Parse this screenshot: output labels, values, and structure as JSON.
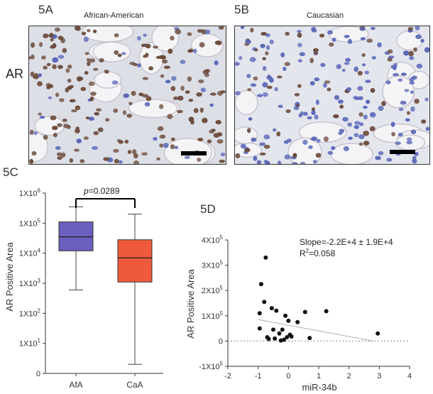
{
  "panels": {
    "a": {
      "label": "5A",
      "title": "African-American"
    },
    "b": {
      "label": "5B",
      "title": "Caucasian"
    },
    "row_label": "AR",
    "c": {
      "label": "5C"
    },
    "d": {
      "label": "5D"
    }
  },
  "colors": {
    "afa_box": "#6a5fbd",
    "caa_box": "#ef5a3c",
    "nuclei_brown": "#6b4a3a",
    "nuclei_blue": "#5a66b8",
    "tissue_bg": "#e8e8ee"
  },
  "chart_data": [
    {
      "type": "box",
      "ylabel": "AR Positive Area",
      "yscale": "log",
      "ytick_labels": [
        "1X10^6",
        "1X10^5",
        "1X10^4",
        "1X10^3",
        "1X10^2",
        "1X10^1",
        "0"
      ],
      "categories": [
        "AfA",
        "CaA"
      ],
      "boxes": [
        {
          "name": "AfA",
          "min": 600,
          "q1": 12000,
          "median": 35000,
          "q3": 110000,
          "max": 350000
        },
        {
          "name": "CaA",
          "min": 2,
          "q1": 1100,
          "median": 7000,
          "q3": 28000,
          "max": 200000
        }
      ],
      "annotation": {
        "p_symbol": "p",
        "p_text": "=0.0289"
      }
    },
    {
      "type": "scatter",
      "xlabel": "miR-34b",
      "ylabel": "AR Positive Area",
      "xlim": [
        -2,
        4
      ],
      "ylim": [
        -100000,
        400000
      ],
      "x_ticks": [
        "-2",
        "-1",
        "0",
        "1",
        "2",
        "3",
        "4"
      ],
      "y_tick_labels": [
        "4X10^5",
        "3X10^5",
        "2X10^5",
        "1X10^5",
        "0",
        "-1X10^5"
      ],
      "annotation": {
        "slope": "Slope=-2.2E+4 ± 1.9E+4",
        "r2_prefix": "R",
        "r2_suffix": "=0.058"
      },
      "points": [
        {
          "x": -0.75,
          "y": 330000
        },
        {
          "x": -0.9,
          "y": 225000
        },
        {
          "x": -0.8,
          "y": 155000
        },
        {
          "x": -0.55,
          "y": 130000
        },
        {
          "x": -0.95,
          "y": 110000
        },
        {
          "x": -0.4,
          "y": 120000
        },
        {
          "x": -0.1,
          "y": 100000
        },
        {
          "x": 0.0,
          "y": 80000
        },
        {
          "x": 0.3,
          "y": 75000
        },
        {
          "x": 0.55,
          "y": 115000
        },
        {
          "x": 1.25,
          "y": 118000
        },
        {
          "x": -0.95,
          "y": 50000
        },
        {
          "x": -0.5,
          "y": 45000
        },
        {
          "x": -0.2,
          "y": 45000
        },
        {
          "x": 0.05,
          "y": 25000
        },
        {
          "x": -0.3,
          "y": 30000
        },
        {
          "x": -0.05,
          "y": 15000
        },
        {
          "x": -0.15,
          "y": 5000
        },
        {
          "x": -0.45,
          "y": 10000
        },
        {
          "x": -0.7,
          "y": 15000
        },
        {
          "x": 0.1,
          "y": 18000
        },
        {
          "x": 0.7,
          "y": 12000
        },
        {
          "x": 2.95,
          "y": 30000
        },
        {
          "x": -0.25,
          "y": 2000
        },
        {
          "x": -0.65,
          "y": 8000
        }
      ],
      "fit": {
        "x": [
          -1,
          2.8
        ],
        "y": [
          85000,
          0
        ]
      }
    }
  ]
}
